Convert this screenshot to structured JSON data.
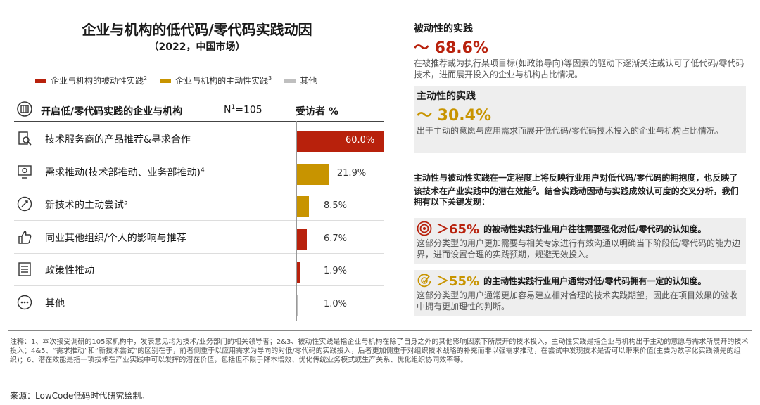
{
  "header": {
    "title": "企业与机构的低代码/零代码实践动因",
    "subtitle": "（2022，中国市场）"
  },
  "legend": [
    {
      "label": "企业与机构的被动性实践",
      "sup": "2",
      "color": "#b8210c"
    },
    {
      "label": "企业与机构的主动性实践",
      "sup": "3",
      "color": "#c89400"
    },
    {
      "label": "其他",
      "sup": "",
      "color": "#bfbfbf"
    }
  ],
  "table": {
    "header_label": "开启低/零代码实践的企业与机构",
    "n_prefix": "N",
    "n_sup": "1",
    "n_value": "=105",
    "pct_label": "受访者 %"
  },
  "chart_data": {
    "type": "bar",
    "title": "企业与机构的低代码/零代码实践动因",
    "subtitle": "（2022，中国市场）",
    "categories": [
      "技术服务商的产品推荐&寻求合作",
      "需求推动(技术部推动、业务部推动)",
      "新技术的主动尝试",
      "同业其他组织/个人的影响与推荐",
      "政策性推动",
      "其他"
    ],
    "category_sups": [
      "",
      "4",
      "5",
      "",
      "",
      ""
    ],
    "values": [
      60.0,
      21.9,
      8.5,
      6.7,
      1.9,
      1.0
    ],
    "value_labels": [
      "60.0%",
      "21.9%",
      "8.5%",
      "6.7%",
      "1.9%",
      "1.0%"
    ],
    "colors": [
      "#b8210c",
      "#c89400",
      "#c89400",
      "#b8210c",
      "#b8210c",
      "#bfbfbf"
    ],
    "icons": [
      "search-document-icon",
      "monitor-icon",
      "rocket-icon",
      "thumbs-up-icon",
      "document-list-icon",
      "more-circle-icon"
    ],
    "xlim": [
      0,
      60
    ],
    "orientation": "horizontal",
    "ylabel": "受访者 %"
  },
  "right": {
    "passive": {
      "head": "被动性的实践",
      "value": "～ 68.6%",
      "desc": "在被推荐或为执行某项目标(如政策导向)等因素的驱动下逐渐关注或认可了低代码/零代码技术，进而展开投入的企业与机构占比情况。"
    },
    "active": {
      "head": "主动性的实践",
      "value": "～ 30.4%",
      "desc": "出于主动的意愿与应用需求而展开低代码/零代码技术投入的企业与机构占比情况。"
    },
    "mid_text_a": "主动性与被动性实践在一定程度上将反映行业用户对低代码/零代码的拥抱度，也反映了该技术在产业实践中的潜在效能",
    "mid_sup": "6",
    "mid_text_b": "。结合实践动因动与实践成效认可度的交叉分析，我们拥有以下关键发现：",
    "finding1": {
      "num": "＞65%",
      "text": "的被动性实践行业用户往往需要强化对低/零代码的认知度。",
      "desc": "这部分类型的用户更加需要与相关专家进行有效沟通以明确当下阶段低/零代码的能力边界，进而设置合理的实践预期，规避无效投入。"
    },
    "finding2": {
      "num": "＞55%",
      "text": "的主动性实践行业用户通常对低/零代码拥有一定的认知度。",
      "desc": "这部分类型的用户通常更加容易建立相对合理的技术实践期望，因此在项目效果的验收中拥有更加理性的判断。"
    }
  },
  "footnote": "注释：1、本次接受调研的105家机构中，发表意见均为技术/业务部门的相关领导者；2&3、被动性实践是指企业与机构在除了自身之外的其他影响因素下所展开的技术投入，主动性实践是指企业与机构出于主动的意愿与需求所展开的技术投入；4&5、“需求推动”和“新技术尝试”的区别在于，前者侧重于以应用需求为导向的对低/零代码的实践投入，后者更加侧重于对组织技术战略的补充而非以强需求推动，在尝试中发现技术是否可以带来价值(主要为数字化实践领先的组织)；6、潜在效能是指一项技术在产业实践中可以发挥的潜在价值，包括但不限于降本增效、优化传统业务模式或生产关系、优化组织协同效率等。",
  "source": "来源：LowCode低码时代研究绘制。"
}
